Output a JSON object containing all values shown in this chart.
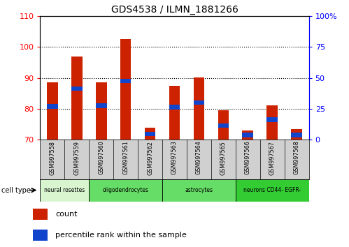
{
  "title": "GDS4538 / ILMN_1881266",
  "samples": [
    "GSM997558",
    "GSM997559",
    "GSM997560",
    "GSM997561",
    "GSM997562",
    "GSM997563",
    "GSM997564",
    "GSM997565",
    "GSM997566",
    "GSM997567",
    "GSM997568"
  ],
  "red_values": [
    88.5,
    97.0,
    88.5,
    102.5,
    73.8,
    87.5,
    90.2,
    79.5,
    73.0,
    81.0,
    73.5
  ],
  "blue_values": [
    80.8,
    86.5,
    81.0,
    89.0,
    71.8,
    80.5,
    82.0,
    74.5,
    71.5,
    76.5,
    71.5
  ],
  "ylim_left": [
    70,
    110
  ],
  "ylim_right": [
    0,
    100
  ],
  "yticks_left": [
    70,
    80,
    90,
    100,
    110
  ],
  "yticks_right": [
    0,
    25,
    50,
    75,
    100
  ],
  "yticklabels_right": [
    "0",
    "25",
    "50",
    "75",
    "100%"
  ],
  "bar_color": "#cc2200",
  "blue_color": "#1144cc",
  "bar_width": 0.45,
  "blue_bar_height": 1.5,
  "grid_yticks": [
    80,
    90,
    100
  ],
  "cell_groups": [
    {
      "label": "neural rosettes",
      "start": 0,
      "end": 1,
      "color": "#d8f5d0"
    },
    {
      "label": "oligodendrocytes",
      "start": 2,
      "end": 4,
      "color": "#66dd66"
    },
    {
      "label": "astrocytes",
      "start": 5,
      "end": 7,
      "color": "#66dd66"
    },
    {
      "label": "neurons CD44- EGFR-",
      "start": 8,
      "end": 10,
      "color": "#33cc33"
    }
  ],
  "gray_color": "#d0d0d0",
  "title_fontsize": 10
}
